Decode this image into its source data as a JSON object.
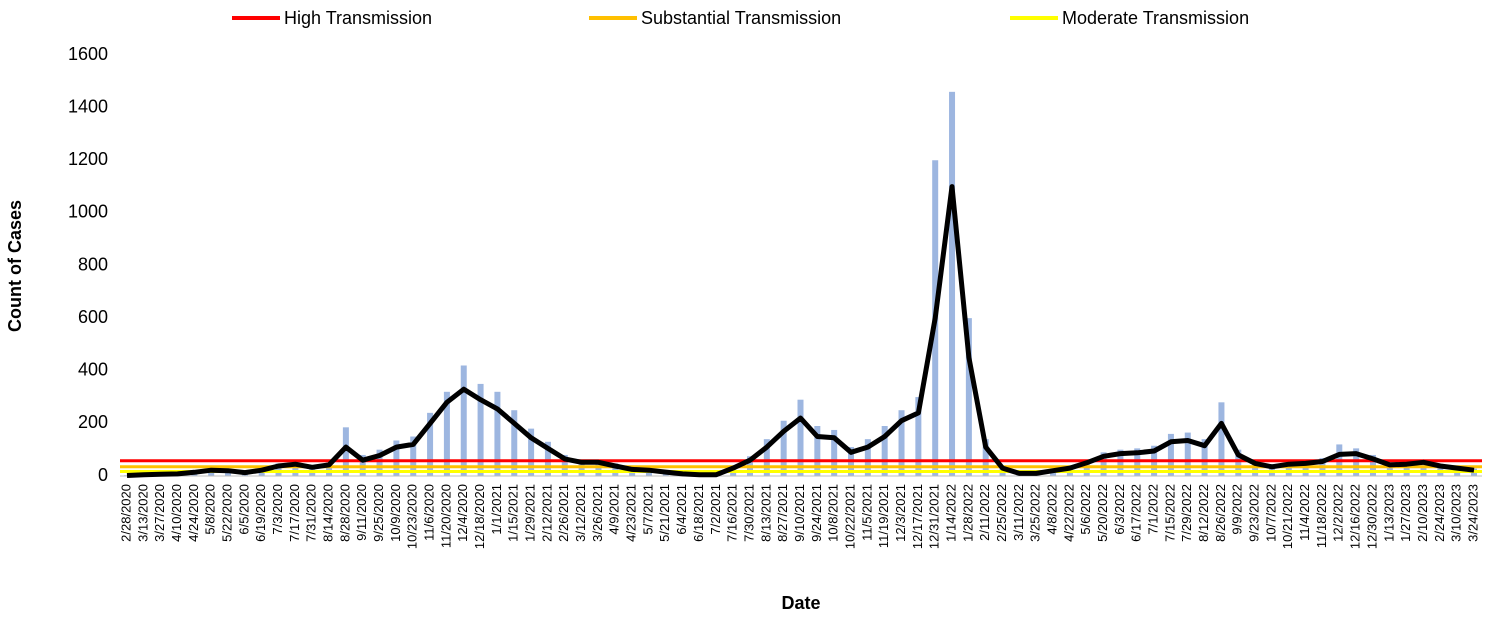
{
  "chart_data": {
    "type": "bar-line",
    "x_label": "Date",
    "y_label": "Count of Cases",
    "categories": [
      "2/28/2020",
      "3/13/2020",
      "3/27/2020",
      "4/10/2020",
      "4/24/2020",
      "5/8/2020",
      "5/22/2020",
      "6/5/2020",
      "6/19/2020",
      "7/3/2020",
      "7/17/2020",
      "7/31/2020",
      "8/14/2020",
      "8/28/2020",
      "9/11/2020",
      "9/25/2020",
      "10/9/2020",
      "10/23/2020",
      "11/6/2020",
      "11/20/2020",
      "12/4/2020",
      "12/18/2020",
      "1/1/2021",
      "1/15/2021",
      "1/29/2021",
      "2/12/2021",
      "2/26/2021",
      "3/12/2021",
      "3/26/2021",
      "4/9/2021",
      "4/23/2021",
      "5/7/2021",
      "5/21/2021",
      "6/4/2021",
      "6/18/2021",
      "7/2/2021",
      "7/16/2021",
      "7/30/2021",
      "8/13/2021",
      "8/27/2021",
      "9/10/2021",
      "9/24/2021",
      "10/8/2021",
      "10/22/2021",
      "11/5/2021",
      "11/19/2021",
      "12/3/2021",
      "12/17/2021",
      "12/31/2021",
      "1/14/2022",
      "1/28/2022",
      "2/11/2022",
      "2/25/2022",
      "3/11/2022",
      "3/25/2022",
      "4/8/2022",
      "4/22/2022",
      "5/6/2022",
      "5/20/2022",
      "6/3/2022",
      "6/17/2022",
      "7/1/2022",
      "7/15/2022",
      "7/29/2022",
      "8/12/2022",
      "8/26/2022",
      "9/9/2022",
      "9/23/2022",
      "10/7/2022",
      "10/21/2022",
      "11/4/2022",
      "11/18/2022",
      "12/2/2022",
      "12/16/2022",
      "12/30/2022",
      "1/13/2023",
      "1/27/2023",
      "2/10/2023",
      "2/24/2023",
      "3/10/2023",
      "3/24/2023"
    ],
    "bars": {
      "color": "#9db6e0",
      "values": [
        3,
        7,
        9,
        11,
        18,
        28,
        26,
        18,
        30,
        48,
        55,
        40,
        50,
        185,
        80,
        100,
        135,
        150,
        240,
        320,
        420,
        350,
        320,
        250,
        180,
        130,
        80,
        62,
        62,
        48,
        32,
        28,
        20,
        12,
        8,
        8,
        40,
        75,
        140,
        210,
        290,
        190,
        175,
        110,
        140,
        190,
        250,
        300,
        1200,
        1460,
        600,
        140,
        40,
        14,
        14,
        26,
        38,
        62,
        90,
        100,
        105,
        115,
        160,
        165,
        140,
        280,
        100,
        60,
        45,
        55,
        60,
        68,
        120,
        105,
        80,
        52,
        55,
        62,
        46,
        36,
        28
      ]
    },
    "line": {
      "color": "#000000",
      "values": [
        2,
        5,
        7,
        8,
        14,
        22,
        20,
        13,
        22,
        38,
        45,
        33,
        42,
        110,
        60,
        78,
        110,
        120,
        200,
        280,
        330,
        290,
        255,
        200,
        145,
        105,
        65,
        52,
        52,
        38,
        25,
        22,
        15,
        8,
        5,
        5,
        30,
        60,
        110,
        170,
        220,
        150,
        145,
        90,
        110,
        150,
        210,
        240,
        600,
        1100,
        450,
        110,
        30,
        10,
        10,
        20,
        30,
        50,
        75,
        85,
        88,
        95,
        130,
        135,
        115,
        200,
        80,
        48,
        35,
        45,
        48,
        55,
        82,
        85,
        65,
        42,
        45,
        52,
        38,
        30,
        22
      ]
    },
    "reference_lines": [
      {
        "name": "High Transmission",
        "color": "#ff0000",
        "value": 58
      },
      {
        "name": "Substantial Transmission",
        "color": "#ffc000",
        "value": 35
      },
      {
        "name": "Moderate Transmission",
        "color": "#ffff00",
        "value": 17
      }
    ],
    "ylim": [
      0,
      1600
    ],
    "yticks": [
      0,
      200,
      400,
      600,
      800,
      1000,
      1200,
      1400,
      1600
    ]
  }
}
